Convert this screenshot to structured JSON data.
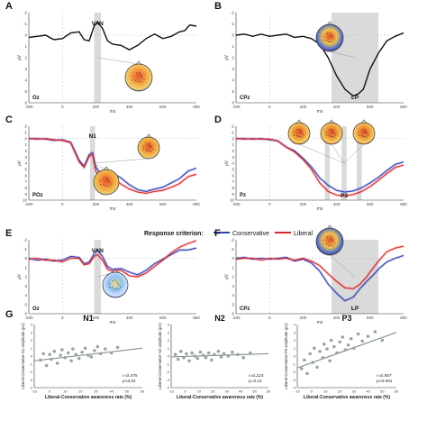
{
  "colors": {
    "conservative": "#2c3fb8",
    "liberal": "#e0242a",
    "single": "#111111",
    "shade": "#d4d4d4",
    "scatter_point": "#9aa3a3",
    "fit_line": "#7d8787"
  },
  "legend": {
    "title": "Response criterion:",
    "conservative": "Conservative",
    "liberal": "Liberal"
  },
  "chart_data": [
    {
      "panel": "A",
      "type": "line",
      "electrode": "Oz",
      "component": "VAN",
      "xlim": [
        -200,
        800
      ],
      "ylim": [
        -2,
        6
      ],
      "y_inverted": true,
      "x_ticks": [
        "-200",
        "0",
        "200",
        "400",
        "600",
        "800"
      ],
      "y_ticks": [
        "-2",
        "-1",
        "0",
        "1",
        "2",
        "3",
        "4",
        "5",
        "6"
      ],
      "xlabel": "ms",
      "ylabel": "µV",
      "shade_ms": [
        190,
        230
      ],
      "topomap": "posterior-negativity",
      "series": [
        {
          "color_key": "single",
          "x": [
            -200,
            -150,
            -100,
            -50,
            0,
            50,
            100,
            130,
            160,
            190,
            210,
            240,
            270,
            300,
            350,
            400,
            450,
            500,
            550,
            600,
            650,
            700,
            730,
            760,
            800
          ],
          "y": [
            0.2,
            0.1,
            0.0,
            0.4,
            0.3,
            -0.2,
            -0.3,
            0.4,
            0.5,
            -0.8,
            -1.2,
            -0.6,
            0.5,
            0.8,
            0.9,
            1.3,
            0.9,
            0.3,
            -0.1,
            0.3,
            0.1,
            -0.3,
            -0.4,
            -0.9,
            -0.8
          ]
        }
      ]
    },
    {
      "panel": "B",
      "type": "line",
      "electrode": "CPz",
      "component": "LP",
      "xlim": [
        -200,
        800
      ],
      "ylim": [
        -2,
        6
      ],
      "y_inverted": true,
      "x_ticks": [
        "-200",
        "0",
        "200",
        "400",
        "600",
        "800"
      ],
      "y_ticks": [
        "-2",
        "-1",
        "0",
        "1",
        "2",
        "3",
        "4",
        "5",
        "6"
      ],
      "xlabel": "ms",
      "ylabel": "µV",
      "shade_ms": [
        370,
        650
      ],
      "topomap": "central-positivity",
      "series": [
        {
          "color_key": "single",
          "x": [
            -200,
            -150,
            -100,
            -50,
            0,
            50,
            100,
            150,
            200,
            250,
            300,
            350,
            400,
            450,
            500,
            530,
            560,
            600,
            650,
            700,
            750,
            800
          ],
          "y": [
            0.0,
            -0.1,
            0.1,
            -0.1,
            0.1,
            0.0,
            -0.1,
            0.2,
            0.1,
            0.3,
            0.8,
            2.0,
            3.6,
            4.8,
            5.4,
            5.2,
            4.8,
            3.0,
            1.6,
            0.5,
            0.1,
            -0.2
          ]
        }
      ]
    },
    {
      "panel": "C",
      "type": "line",
      "electrode": "POz",
      "component": "N1",
      "xlim": [
        -200,
        800
      ],
      "ylim": [
        -2,
        10
      ],
      "y_inverted": true,
      "x_ticks": [
        "-200",
        "0",
        "200",
        "400",
        "600",
        "800"
      ],
      "y_ticks": [
        "-2",
        "-1",
        "0",
        "1",
        "2",
        "3",
        "4",
        "5",
        "6",
        "7",
        "8",
        "9",
        "10"
      ],
      "xlabel": "ms",
      "ylabel": "µV",
      "shade_ms": [
        165,
        195
      ],
      "topomap": "parietal-pair",
      "series": [
        {
          "name": "Conservative",
          "color_key": "conservative",
          "x": [
            -200,
            -150,
            -100,
            -50,
            0,
            50,
            100,
            130,
            160,
            180,
            200,
            230,
            260,
            300,
            350,
            400,
            450,
            500,
            550,
            600,
            650,
            700,
            750,
            800
          ],
          "y": [
            0.0,
            0.0,
            0.1,
            0.3,
            0.2,
            0.6,
            3.5,
            4.5,
            2.6,
            2.3,
            4.6,
            5.8,
            5.4,
            5.6,
            6.4,
            7.5,
            8.3,
            8.6,
            8.2,
            7.9,
            7.2,
            6.5,
            5.3,
            4.8
          ]
        },
        {
          "name": "Liberal",
          "color_key": "liberal",
          "x": [
            -200,
            -150,
            -100,
            -50,
            0,
            50,
            100,
            130,
            160,
            180,
            200,
            230,
            260,
            300,
            350,
            400,
            450,
            500,
            550,
            600,
            650,
            700,
            750,
            800
          ],
          "y": [
            0.0,
            0.1,
            0.0,
            0.2,
            0.3,
            0.7,
            3.8,
            4.7,
            2.9,
            2.6,
            5.3,
            6.8,
            6.6,
            6.4,
            7.4,
            8.2,
            8.7,
            8.9,
            8.6,
            8.4,
            7.9,
            7.3,
            6.2,
            5.8
          ]
        }
      ]
    },
    {
      "panel": "D",
      "type": "line",
      "electrode": "Pz",
      "component": "P3",
      "xlim": [
        -200,
        800
      ],
      "ylim": [
        -2,
        10
      ],
      "y_inverted": true,
      "x_ticks": [
        "-200",
        "0",
        "200",
        "400",
        "600",
        "800"
      ],
      "y_ticks": [
        "-2",
        "-1",
        "0",
        "1",
        "2",
        "3",
        "4",
        "5",
        "6",
        "7",
        "8",
        "9",
        "10"
      ],
      "xlabel": "ms",
      "ylabel": "µV",
      "shade_ms": [
        [
          330,
          360
        ],
        [
          430,
          460
        ],
        [
          520,
          550
        ]
      ],
      "topomap": "triple-parietal",
      "series": [
        {
          "name": "Conservative",
          "color_key": "conservative",
          "x": [
            -200,
            -150,
            -100,
            -50,
            0,
            50,
            100,
            150,
            200,
            250,
            300,
            350,
            400,
            450,
            500,
            550,
            600,
            650,
            700,
            750,
            800
          ],
          "y": [
            0.0,
            0.0,
            0.1,
            0.0,
            0.2,
            0.4,
            1.4,
            2.0,
            3.2,
            4.6,
            6.4,
            7.6,
            8.4,
            8.7,
            8.5,
            8.0,
            7.2,
            6.3,
            5.2,
            4.2,
            3.8
          ]
        },
        {
          "name": "Liberal",
          "color_key": "liberal",
          "x": [
            -200,
            -150,
            -100,
            -50,
            0,
            50,
            100,
            150,
            200,
            250,
            300,
            350,
            400,
            450,
            500,
            550,
            600,
            650,
            700,
            750,
            800
          ],
          "y": [
            0.0,
            0.1,
            0.0,
            0.1,
            0.1,
            0.4,
            1.4,
            2.2,
            3.4,
            5.0,
            7.2,
            8.6,
            9.2,
            9.3,
            9.1,
            8.6,
            7.8,
            6.8,
            5.7,
            4.7,
            4.3
          ]
        }
      ]
    },
    {
      "panel": "E",
      "type": "line",
      "electrode": "Oz",
      "component": "VAN",
      "xlim": [
        -200,
        800
      ],
      "ylim": [
        -2,
        6
      ],
      "y_inverted": true,
      "x_ticks": [
        "-200",
        "0",
        "200",
        "400",
        "600",
        "800"
      ],
      "y_ticks": [
        "-2",
        "-1",
        "0",
        "1",
        "2",
        "3",
        "4",
        "5",
        "6"
      ],
      "xlabel": "ms",
      "ylabel": "µV",
      "shade_ms": [
        190,
        230
      ],
      "topomap": "occipital-negativity",
      "series": [
        {
          "name": "Conservative",
          "color_key": "conservative",
          "x": [
            -200,
            -150,
            -100,
            -50,
            0,
            50,
            100,
            130,
            160,
            190,
            210,
            240,
            270,
            300,
            350,
            400,
            450,
            500,
            550,
            600,
            650,
            700,
            750,
            800
          ],
          "y": [
            0.0,
            0.2,
            0.1,
            0.3,
            0.2,
            -0.2,
            -0.1,
            0.6,
            0.4,
            -0.5,
            -0.9,
            -0.2,
            0.9,
            1.2,
            1.1,
            1.5,
            1.8,
            1.3,
            0.6,
            0.1,
            -0.4,
            -0.9,
            -0.9,
            -1.1
          ]
        },
        {
          "name": "Liberal",
          "color_key": "liberal",
          "x": [
            -200,
            -150,
            -100,
            -50,
            0,
            50,
            100,
            130,
            160,
            190,
            210,
            240,
            270,
            300,
            350,
            400,
            450,
            500,
            550,
            600,
            650,
            700,
            750,
            800
          ],
          "y": [
            0.1,
            0.0,
            0.2,
            0.2,
            0.4,
            0.0,
            0.0,
            0.7,
            0.6,
            -0.2,
            -0.4,
            0.2,
            1.2,
            1.4,
            1.3,
            1.9,
            2.0,
            1.6,
            0.9,
            0.2,
            -0.6,
            -1.2,
            -1.6,
            -1.9
          ]
        }
      ]
    },
    {
      "panel": "F",
      "type": "line",
      "electrode": "CPz",
      "component": "LP",
      "xlim": [
        -200,
        800
      ],
      "ylim": [
        -2,
        6
      ],
      "y_inverted": true,
      "x_ticks": [
        "-200",
        "0",
        "200",
        "400",
        "600",
        "800"
      ],
      "y_ticks": [
        "-2",
        "-1",
        "0",
        "1",
        "2",
        "3",
        "4",
        "5",
        "6"
      ],
      "xlabel": "ms",
      "ylabel": "µV",
      "shade_ms": [
        370,
        650
      ],
      "topomap": "central-positivity",
      "series": [
        {
          "name": "Conservative",
          "color_key": "conservative",
          "x": [
            -200,
            -150,
            -100,
            -50,
            0,
            50,
            100,
            150,
            200,
            250,
            300,
            350,
            400,
            450,
            500,
            540,
            580,
            620,
            660,
            700,
            750,
            800
          ],
          "y": [
            0.0,
            -0.1,
            0.1,
            0.0,
            0.1,
            0.0,
            -0.1,
            0.3,
            0.1,
            0.5,
            1.4,
            2.8,
            3.8,
            4.6,
            4.2,
            3.3,
            2.5,
            1.8,
            1.0,
            0.4,
            0.0,
            -0.3
          ]
        },
        {
          "name": "Liberal",
          "color_key": "liberal",
          "x": [
            -200,
            -150,
            -100,
            -50,
            0,
            50,
            100,
            150,
            200,
            250,
            300,
            350,
            400,
            450,
            500,
            540,
            580,
            620,
            660,
            700,
            750,
            800
          ],
          "y": [
            0.1,
            0.0,
            0.0,
            0.2,
            0.0,
            0.1,
            0.0,
            0.2,
            0.0,
            0.3,
            0.8,
            1.7,
            2.5,
            3.2,
            3.3,
            2.8,
            2.0,
            1.0,
            0.1,
            -0.7,
            -1.1,
            -1.3
          ]
        }
      ]
    },
    {
      "panel": "G",
      "type": "scatter",
      "title": "N1",
      "xlabel": "Liberal-Conservative awareness rate (%)",
      "ylabel": "Liberal-Conservative N1 amplitude (µV)",
      "xlim": [
        -10,
        60
      ],
      "ylim": [
        -4,
        4
      ],
      "x_ticks": [
        "-10",
        "0",
        "10",
        "20",
        "30",
        "40",
        "50",
        "60"
      ],
      "y_ticks": [
        "-4",
        "-3",
        "-2",
        "-1",
        "0",
        "1",
        "2",
        "3",
        "4"
      ],
      "stat_r": "r=0.475",
      "stat_p": "p<0.01",
      "fit": [
        [
          -10,
          -0.6
        ],
        [
          60,
          1.0
        ]
      ],
      "points": [
        [
          -6,
          -0.5
        ],
        [
          -4,
          0.3
        ],
        [
          -2,
          -1.2
        ],
        [
          0,
          0.2
        ],
        [
          1,
          -0.4
        ],
        [
          3,
          0.6
        ],
        [
          5,
          -0.9
        ],
        [
          7,
          0.1
        ],
        [
          8,
          0.8
        ],
        [
          10,
          -0.2
        ],
        [
          12,
          0.4
        ],
        [
          14,
          -0.6
        ],
        [
          15,
          0.9
        ],
        [
          17,
          0.2
        ],
        [
          19,
          -0.3
        ],
        [
          21,
          0.5
        ],
        [
          23,
          1.0
        ],
        [
          25,
          0.1
        ],
        [
          27,
          -0.1
        ],
        [
          29,
          0.7
        ],
        [
          31,
          1.2
        ],
        [
          33,
          0.3
        ],
        [
          36,
          0.9
        ],
        [
          40,
          0.4
        ],
        [
          44,
          1.1
        ]
      ]
    },
    {
      "panel": "G",
      "type": "scatter",
      "title": "N2",
      "xlabel": "Liberal-Conservative awareness rate (%)",
      "ylabel": "Liberal-Conservative N2 amplitude (µV)",
      "xlim": [
        -10,
        60
      ],
      "ylim": [
        -4,
        4
      ],
      "x_ticks": [
        "-10",
        "0",
        "10",
        "20",
        "30",
        "40",
        "50",
        "60"
      ],
      "y_ticks": [
        "-4",
        "-3",
        "-2",
        "-1",
        "0",
        "1",
        "2",
        "3",
        "4"
      ],
      "stat_r": "r=0.224",
      "stat_p": "p=0.21",
      "fit": [
        [
          -10,
          -0.1
        ],
        [
          60,
          0.3
        ]
      ],
      "points": [
        [
          -7,
          0.2
        ],
        [
          -5,
          -0.4
        ],
        [
          -3,
          0.6
        ],
        [
          -1,
          -0.2
        ],
        [
          1,
          0.3
        ],
        [
          3,
          -0.6
        ],
        [
          5,
          0.4
        ],
        [
          7,
          0.0
        ],
        [
          9,
          -0.3
        ],
        [
          11,
          0.5
        ],
        [
          13,
          0.1
        ],
        [
          15,
          -0.2
        ],
        [
          17,
          0.4
        ],
        [
          19,
          -0.5
        ],
        [
          21,
          0.2
        ],
        [
          24,
          0.6
        ],
        [
          26,
          -0.1
        ],
        [
          28,
          0.3
        ],
        [
          31,
          0.0
        ],
        [
          34,
          0.5
        ],
        [
          38,
          0.2
        ],
        [
          42,
          -0.2
        ],
        [
          47,
          0.4
        ]
      ]
    },
    {
      "panel": "G",
      "type": "scatter",
      "title": "P3",
      "xlabel": "Liberal-Conservative awareness rate (%)",
      "ylabel": "Liberal-Conservative P3 amplitude (µV)",
      "xlim": [
        -10,
        60
      ],
      "ylim": [
        -4,
        4
      ],
      "x_ticks": [
        "-10",
        "0",
        "10",
        "20",
        "30",
        "40",
        "50",
        "60"
      ],
      "y_ticks": [
        "-4",
        "-3",
        "-2",
        "-1",
        "0",
        "1",
        "2",
        "3",
        "4"
      ],
      "stat_r": "r=0.567",
      "stat_p": "p<0.001",
      "fit": [
        [
          -10,
          -1.5
        ],
        [
          60,
          3.0
        ]
      ],
      "points": [
        [
          -7,
          -1.6
        ],
        [
          -5,
          -0.5
        ],
        [
          -3,
          -2.2
        ],
        [
          -1,
          0.3
        ],
        [
          1,
          -0.8
        ],
        [
          2,
          1.0
        ],
        [
          4,
          -1.4
        ],
        [
          6,
          0.6
        ],
        [
          8,
          -0.2
        ],
        [
          9,
          1.5
        ],
        [
          11,
          0.9
        ],
        [
          13,
          -0.6
        ],
        [
          14,
          2.0
        ],
        [
          16,
          1.2
        ],
        [
          18,
          0.4
        ],
        [
          20,
          1.8
        ],
        [
          22,
          2.4
        ],
        [
          24,
          0.8
        ],
        [
          26,
          1.4
        ],
        [
          28,
          2.2
        ],
        [
          30,
          1.0
        ],
        [
          33,
          2.8
        ],
        [
          36,
          1.9
        ],
        [
          40,
          2.5
        ],
        [
          45,
          3.1
        ],
        [
          50,
          2.0
        ]
      ]
    }
  ]
}
